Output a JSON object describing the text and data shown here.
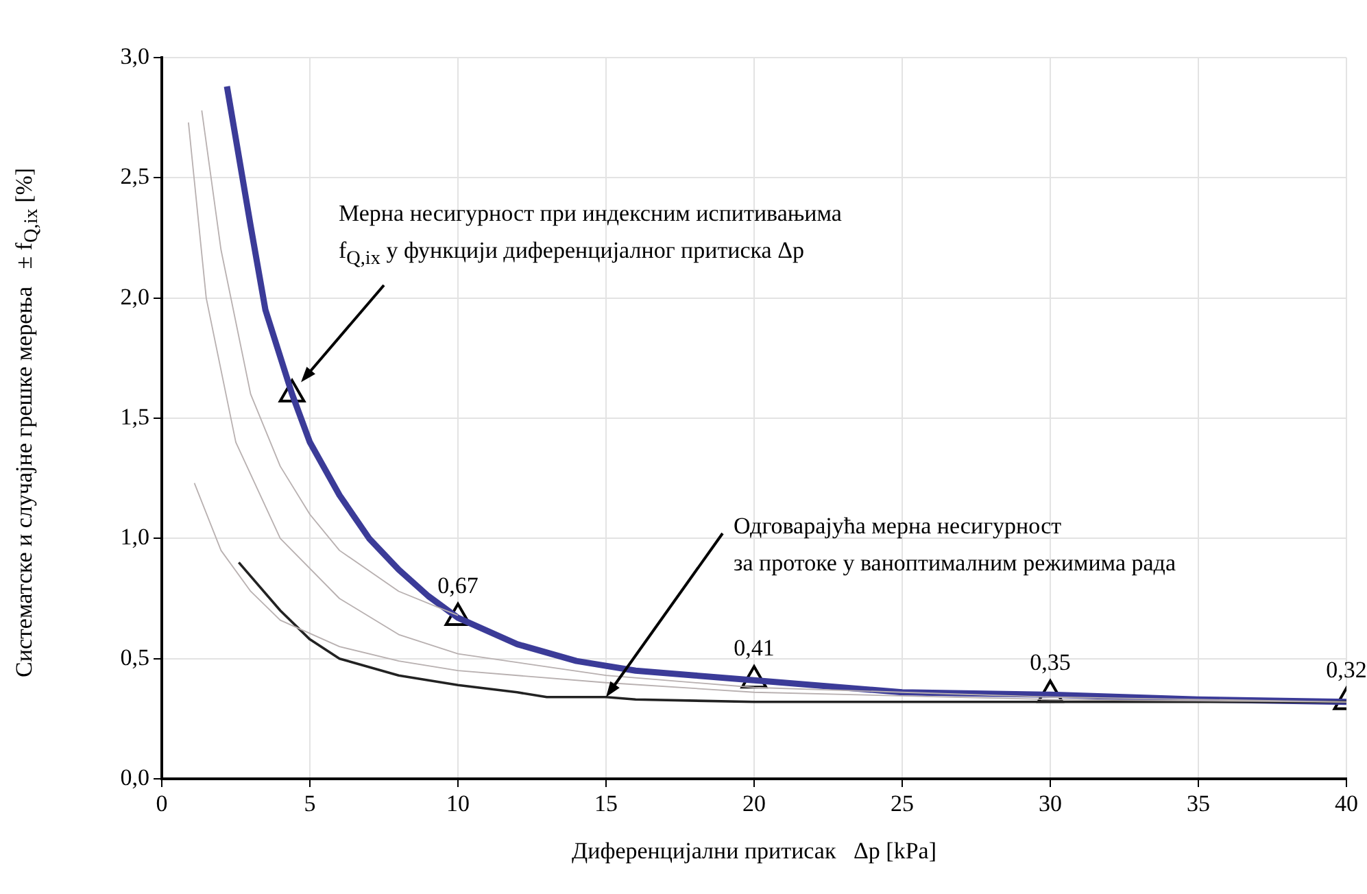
{
  "chart_data": {
    "type": "line",
    "xlabel": "Диференцијални притисак   Δp [kPa]",
    "ylabel": "Систематске и случајне грешке мерења   ± f$_{Q,ix}$ [%]",
    "xlim": [
      0,
      40
    ],
    "xticks": [
      0,
      5,
      10,
      15,
      20,
      25,
      30,
      35,
      40
    ],
    "ylim": [
      0,
      3
    ],
    "yticks": [
      {
        "value": 0,
        "label": "0,0"
      },
      {
        "value": 0.5,
        "label": "0,5"
      },
      {
        "value": 1,
        "label": "1,0"
      },
      {
        "value": 1.5,
        "label": "1,5"
      },
      {
        "value": 2,
        "label": "2,0"
      },
      {
        "value": 2.5,
        "label": "2,5"
      },
      {
        "value": 3,
        "label": "3,0"
      }
    ],
    "grid": true,
    "legend": false,
    "marker": "none",
    "line_style": "solid",
    "series": [
      {
        "color": "#b8b0b0",
        "x": [
          0.9,
          1.5,
          2.5,
          4,
          6,
          8,
          10,
          15,
          20,
          30,
          40
        ],
        "values": [
          2.73,
          2.0,
          1.4,
          1.0,
          0.75,
          0.6,
          0.52,
          0.43,
          0.38,
          0.34,
          0.32
        ]
      },
      {
        "color": "#b8b0b0",
        "x": [
          1.35,
          2,
          3,
          4,
          5,
          6,
          8,
          10
        ],
        "values": [
          2.78,
          2.2,
          1.6,
          1.3,
          1.1,
          0.95,
          0.78,
          0.68
        ]
      },
      {
        "color": "#b8b0b0",
        "x": [
          1.1,
          2,
          3,
          4,
          6,
          8,
          10,
          15,
          20,
          30,
          40
        ],
        "values": [
          1.23,
          0.95,
          0.78,
          0.66,
          0.55,
          0.49,
          0.45,
          0.4,
          0.36,
          0.33,
          0.32
        ]
      },
      {
        "color": "#222222",
        "x": [
          2.6,
          4,
          5,
          6,
          8,
          10,
          12,
          13,
          15,
          16,
          20,
          30,
          40
        ],
        "values": [
          0.9,
          0.7,
          0.58,
          0.5,
          0.43,
          0.39,
          0.36,
          0.34,
          0.34,
          0.33,
          0.32,
          0.32,
          0.32
        ]
      },
      {
        "color": "#3b3b98",
        "x": [
          2.2,
          3,
          3.5,
          4.4,
          5,
          6,
          7,
          8,
          9,
          10,
          12,
          14,
          16,
          18,
          20,
          25,
          30,
          35,
          40
        ],
        "values": [
          2.88,
          2.3,
          1.95,
          1.6,
          1.4,
          1.18,
          1.0,
          0.87,
          0.76,
          0.67,
          0.56,
          0.49,
          0.45,
          0.43,
          0.41,
          0.36,
          0.35,
          0.33,
          0.32
        ]
      },
      {
        "type": "scatter",
        "marker": "triangle",
        "color": "#000000",
        "x": [
          4.4,
          10,
          20,
          30,
          40
        ],
        "values": [
          1.6,
          0.67,
          0.41,
          0.35,
          0.32
        ],
        "value_labels": [
          null,
          "0,67",
          "0,41",
          "0,35",
          "0,32"
        ]
      }
    ],
    "annotations": [
      {
        "text": "Мерна несигурност при индексним испитивањима\nf$_{Q,ix}$ у функцији диференцијалног притиска Δp",
        "x": 4.7,
        "y": 1.65
      },
      {
        "text": "Одговарајућа мерна несигурност\nза протоке у ваноптималним режимима рада",
        "x": 15,
        "y": 0.34
      }
    ]
  }
}
